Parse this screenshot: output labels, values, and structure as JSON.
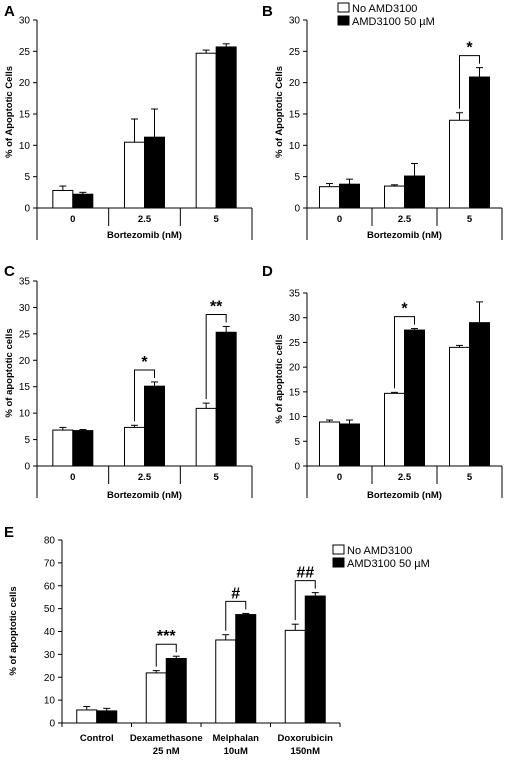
{
  "legend": {
    "no_label": "No AMD3100",
    "amd_label": "AMD3100 50 µM"
  },
  "colors": {
    "no_amd": "#ffffff",
    "amd": "#000000",
    "axis": "#000000"
  },
  "chart_data": [
    {
      "panel": "A",
      "type": "bar",
      "categories": [
        "0",
        "2.5",
        "5"
      ],
      "xlabel": "Bortezomib (nM)",
      "ylabel": "% of Apoptotic Cells",
      "ylim": [
        0,
        30
      ],
      "yticks": [
        0,
        5,
        10,
        15,
        20,
        25,
        30
      ],
      "series": [
        {
          "name": "No AMD3100",
          "values": [
            2.8,
            10.5,
            24.7
          ],
          "errors": [
            0.7,
            3.7,
            0.5
          ]
        },
        {
          "name": "AMD3100 50 µM",
          "values": [
            2.2,
            11.3,
            25.7
          ],
          "errors": [
            0.3,
            4.5,
            0.5
          ]
        }
      ],
      "annotations": []
    },
    {
      "panel": "B",
      "type": "bar",
      "categories": [
        "0",
        "2.5",
        "5"
      ],
      "xlabel": "Bortezomib (nM)",
      "ylabel": "% of Apoptotic Cells",
      "ylim": [
        0,
        30
      ],
      "yticks": [
        0,
        5,
        10,
        15,
        20,
        25,
        30
      ],
      "series": [
        {
          "name": "No AMD3100",
          "values": [
            3.4,
            3.5,
            14.0
          ],
          "errors": [
            0.5,
            0.2,
            1.2
          ]
        },
        {
          "name": "AMD3100 50 µM",
          "values": [
            3.8,
            5.1,
            20.9
          ],
          "errors": [
            0.8,
            2.0,
            1.5
          ]
        }
      ],
      "annotations": [
        {
          "category": 2,
          "label": "*"
        }
      ]
    },
    {
      "panel": "C",
      "type": "bar",
      "categories": [
        "0",
        "2.5",
        "5"
      ],
      "xlabel": "Bortezomib (nM)",
      "ylabel": "% of apoptotic cells",
      "ylim": [
        0,
        35
      ],
      "yticks": [
        0,
        5,
        10,
        15,
        20,
        25,
        30,
        35
      ],
      "series": [
        {
          "name": "No AMD3100",
          "values": [
            6.8,
            7.3,
            10.9
          ],
          "errors": [
            0.5,
            0.4,
            1.0
          ]
        },
        {
          "name": "AMD3100 50 µM",
          "values": [
            6.7,
            15.1,
            25.3
          ],
          "errors": [
            0.2,
            0.8,
            1.1
          ]
        }
      ],
      "annotations": [
        {
          "category": 1,
          "label": "*"
        },
        {
          "category": 2,
          "label": "**"
        }
      ]
    },
    {
      "panel": "D",
      "type": "bar",
      "categories": [
        "0",
        "2.5",
        "5"
      ],
      "xlabel": "Bortezomib (nM)",
      "ylabel": "% of apoptotic cells",
      "ylim": [
        0,
        35
      ],
      "yticks": [
        0,
        5,
        10,
        15,
        20,
        25,
        30,
        35
      ],
      "series": [
        {
          "name": "No AMD3100",
          "values": [
            8.9,
            14.7,
            24.0
          ],
          "errors": [
            0.4,
            0.2,
            0.4
          ]
        },
        {
          "name": "AMD3100 50 µM",
          "values": [
            8.5,
            27.5,
            29.0
          ],
          "errors": [
            0.8,
            0.3,
            4.2
          ]
        }
      ],
      "annotations": [
        {
          "category": 1,
          "label": "*"
        }
      ]
    },
    {
      "panel": "E",
      "type": "bar",
      "categories": [
        "Control",
        "Dexamethasone 25 nM",
        "Melphalan 10uM",
        "Doxorubicin 150nM"
      ],
      "category_lines": [
        [
          "Control"
        ],
        [
          "Dexamethasone",
          "25 nM"
        ],
        [
          "Melphalan",
          "10uM"
        ],
        [
          "Doxorubicin",
          "150nM"
        ]
      ],
      "xlabel": "",
      "ylabel": "% of apoptotic cells",
      "ylim": [
        0,
        80
      ],
      "yticks": [
        0,
        10,
        20,
        30,
        40,
        50,
        60,
        70,
        80
      ],
      "series": [
        {
          "name": "No AMD3100",
          "values": [
            5.7,
            21.9,
            36.3,
            40.5
          ],
          "errors": [
            1.5,
            1.0,
            2.3,
            2.7
          ]
        },
        {
          "name": "AMD3100 50 µM",
          "values": [
            5.3,
            28.2,
            47.4,
            55.5
          ],
          "errors": [
            1.1,
            1.0,
            0.5,
            1.5
          ]
        }
      ],
      "annotations": [
        {
          "category": 1,
          "label": "***"
        },
        {
          "category": 2,
          "label": "#"
        },
        {
          "category": 3,
          "label": "##"
        }
      ]
    }
  ]
}
